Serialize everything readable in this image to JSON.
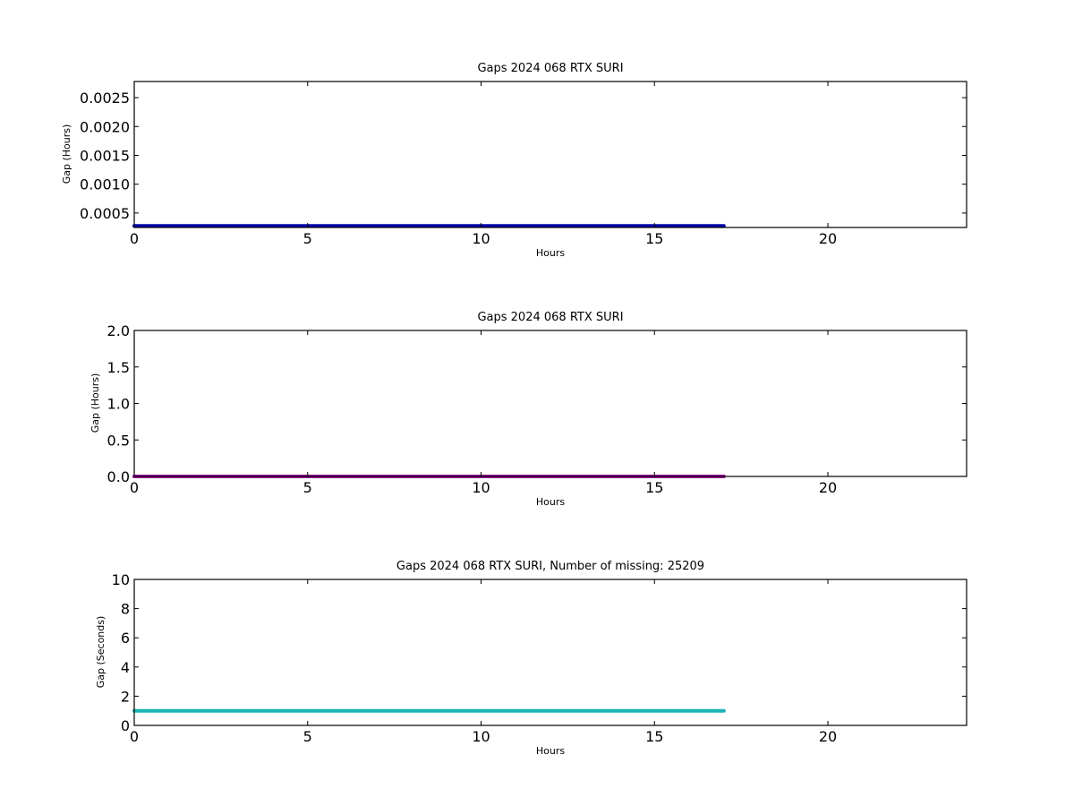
{
  "chart_data": [
    {
      "type": "line",
      "title": "Gaps 2024 068 RTX  SURI",
      "xlabel": "Hours",
      "ylabel": "Gap (Hours)",
      "xlim": [
        0,
        24
      ],
      "ylim": [
        0.00025,
        0.00278
      ],
      "xticks": [
        0,
        5,
        10,
        15,
        20
      ],
      "yticks": [
        0.0005,
        0.001,
        0.0015,
        0.002,
        0.0025
      ],
      "ytick_labels": [
        "0.0005",
        "0.0010",
        "0.0015",
        "0.0020",
        "0.0025"
      ],
      "grid": false,
      "series": [
        {
          "color": "#0000aa",
          "x": [
            0,
            17
          ],
          "y": [
            0.000278,
            0.000278
          ]
        }
      ]
    },
    {
      "type": "line",
      "title": "Gaps 2024 068 RTX  SURI",
      "xlabel": "Hours",
      "ylabel": "Gap (Hours)",
      "xlim": [
        0,
        24
      ],
      "ylim": [
        0,
        2.0
      ],
      "xticks": [
        0,
        5,
        10,
        15,
        20
      ],
      "yticks": [
        0.0,
        0.5,
        1.0,
        1.5,
        2.0
      ],
      "ytick_labels": [
        "0.0",
        "0.5",
        "1.0",
        "1.5",
        "2.0"
      ],
      "grid": false,
      "series": [
        {
          "color": "#990099",
          "x": [
            0,
            17
          ],
          "y": [
            0.0003,
            0.0003
          ]
        }
      ]
    },
    {
      "type": "line",
      "title": "Gaps 2024 068 RTX  SURI, Number of missing: 25209",
      "xlabel": "Hours",
      "ylabel": "Gap (Seconds)",
      "xlim": [
        0,
        24
      ],
      "ylim": [
        0,
        10
      ],
      "xticks": [
        0,
        5,
        10,
        15,
        20
      ],
      "yticks": [
        0,
        2,
        4,
        6,
        8,
        10
      ],
      "ytick_labels": [
        "0",
        "2",
        "4",
        "6",
        "8",
        "10"
      ],
      "grid": false,
      "series": [
        {
          "color": "#1ab3b3",
          "x": [
            0,
            17
          ],
          "y": [
            1,
            1
          ]
        }
      ]
    }
  ]
}
